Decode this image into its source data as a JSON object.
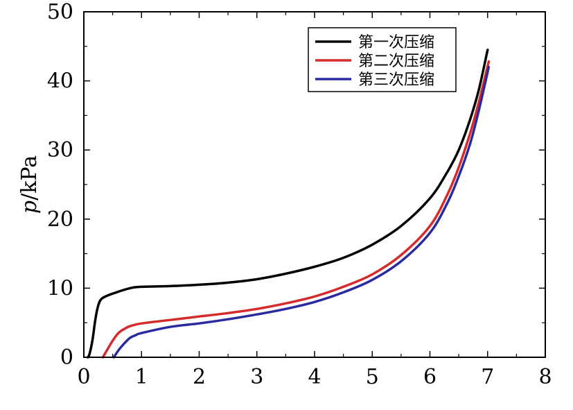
{
  "chart_data": {
    "type": "line",
    "title": "",
    "xlabel": "",
    "ylabel": "p/kPa",
    "ylabel_italic_part": "p",
    "ylabel_rest": "/kPa",
    "xlim": [
      0,
      8
    ],
    "ylim": [
      0,
      50
    ],
    "xticks": [
      0,
      1,
      2,
      3,
      4,
      5,
      6,
      7,
      8
    ],
    "yticks": [
      0,
      10,
      20,
      30,
      40,
      50
    ],
    "grid": false,
    "legend_position": "top-right",
    "series": [
      {
        "name": "第一次压缩",
        "color": "#000000",
        "points": [
          [
            0.07,
            0
          ],
          [
            0.1,
            0.5
          ],
          [
            0.15,
            2.5
          ],
          [
            0.2,
            5.5
          ],
          [
            0.25,
            7.5
          ],
          [
            0.3,
            8.4
          ],
          [
            0.4,
            8.9
          ],
          [
            0.6,
            9.5
          ],
          [
            0.8,
            10.0
          ],
          [
            1.0,
            10.2
          ],
          [
            1.5,
            10.3
          ],
          [
            2.0,
            10.5
          ],
          [
            2.5,
            10.8
          ],
          [
            3.0,
            11.3
          ],
          [
            3.5,
            12.1
          ],
          [
            4.0,
            13.1
          ],
          [
            4.5,
            14.4
          ],
          [
            5.0,
            16.3
          ],
          [
            5.5,
            19.0
          ],
          [
            6.0,
            23.0
          ],
          [
            6.3,
            26.8
          ],
          [
            6.5,
            30.0
          ],
          [
            6.7,
            34.5
          ],
          [
            6.85,
            38.8
          ],
          [
            7.0,
            44.5
          ]
        ]
      },
      {
        "name": "第二次压缩",
        "color": "#d62a2a",
        "points": [
          [
            0.33,
            0
          ],
          [
            0.4,
            1.0
          ],
          [
            0.5,
            2.4
          ],
          [
            0.6,
            3.5
          ],
          [
            0.7,
            4.1
          ],
          [
            0.8,
            4.5
          ],
          [
            1.0,
            4.9
          ],
          [
            1.5,
            5.4
          ],
          [
            2.0,
            5.9
          ],
          [
            2.5,
            6.4
          ],
          [
            3.0,
            7.0
          ],
          [
            3.5,
            7.8
          ],
          [
            4.0,
            8.8
          ],
          [
            4.5,
            10.2
          ],
          [
            5.0,
            12.0
          ],
          [
            5.5,
            14.8
          ],
          [
            6.0,
            19.0
          ],
          [
            6.3,
            23.5
          ],
          [
            6.5,
            27.5
          ],
          [
            6.7,
            32.5
          ],
          [
            6.85,
            37.0
          ],
          [
            7.02,
            42.8
          ]
        ]
      },
      {
        "name": "第三次压缩",
        "color": "#2a2aa0",
        "points": [
          [
            0.52,
            0
          ],
          [
            0.6,
            1.0
          ],
          [
            0.7,
            2.0
          ],
          [
            0.8,
            2.8
          ],
          [
            0.9,
            3.2
          ],
          [
            1.0,
            3.5
          ],
          [
            1.5,
            4.4
          ],
          [
            2.0,
            4.9
          ],
          [
            2.5,
            5.5
          ],
          [
            3.0,
            6.2
          ],
          [
            3.5,
            7.0
          ],
          [
            4.0,
            8.0
          ],
          [
            4.5,
            9.4
          ],
          [
            5.0,
            11.2
          ],
          [
            5.5,
            13.9
          ],
          [
            6.0,
            18.0
          ],
          [
            6.3,
            22.3
          ],
          [
            6.5,
            26.2
          ],
          [
            6.7,
            31.0
          ],
          [
            6.85,
            35.8
          ],
          [
            7.02,
            42.0
          ]
        ]
      }
    ]
  }
}
